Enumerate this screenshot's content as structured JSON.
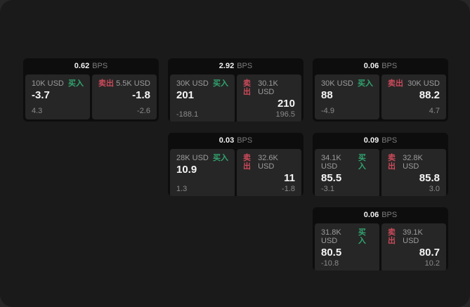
{
  "labels": {
    "bps_unit": "BPS",
    "buy": "买入",
    "sell": "卖出"
  },
  "colors": {
    "buy": "#31a46f",
    "sell": "#cb4a5a",
    "window_bg": "#1a1a1a",
    "card_bg": "#0d0d0d",
    "panel_bg": "#262626"
  },
  "cards": [
    {
      "bps": "0.62",
      "buy": {
        "amount": "10K USD",
        "value": "-3.7",
        "delta": "4.3"
      },
      "sell": {
        "amount": "5.5K USD",
        "value": "-1.8",
        "delta": "-2.6"
      }
    },
    {
      "bps": "2.92",
      "buy": {
        "amount": "30K USD",
        "value": "201",
        "delta": "-188.1"
      },
      "sell": {
        "amount": "30.1K USD",
        "value": "210",
        "delta": "196.5"
      }
    },
    {
      "bps": "0.06",
      "buy": {
        "amount": "30K USD",
        "value": "88",
        "delta": "-4.9"
      },
      "sell": {
        "amount": "30K USD",
        "value": "88.2",
        "delta": "4.7"
      }
    },
    {
      "bps": "0.03",
      "buy": {
        "amount": "28K USD",
        "value": "10.9",
        "delta": "1.3"
      },
      "sell": {
        "amount": "32.6K USD",
        "value": "11",
        "delta": "-1.8"
      }
    },
    {
      "bps": "0.09",
      "buy": {
        "amount": "34.1K USD",
        "value": "85.5",
        "delta": "-3.1"
      },
      "sell": {
        "amount": "32.8K USD",
        "value": "85.8",
        "delta": "3.0"
      }
    },
    {
      "bps": "0.06",
      "buy": {
        "amount": "31.8K USD",
        "value": "80.5",
        "delta": "-10.8"
      },
      "sell": {
        "amount": "39.1K USD",
        "value": "80.7",
        "delta": "10.2"
      }
    }
  ]
}
